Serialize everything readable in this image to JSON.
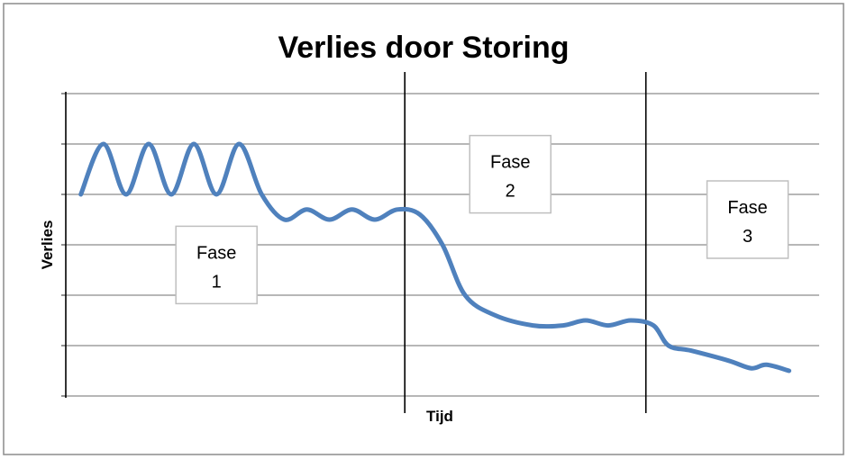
{
  "chart_data": {
    "type": "line",
    "title": "Verlies door Storing",
    "xlabel": "Tijd",
    "ylabel": "Verlies",
    "ylim": [
      0,
      6
    ],
    "xlim": [
      0,
      100
    ],
    "grid": true,
    "series": [
      {
        "color": "#4f81bd",
        "points": [
          [
            2,
            4.0
          ],
          [
            5,
            5.0
          ],
          [
            8,
            4.0
          ],
          [
            11,
            5.0
          ],
          [
            14,
            4.0
          ],
          [
            17,
            5.0
          ],
          [
            20,
            4.0
          ],
          [
            23,
            5.0
          ],
          [
            26,
            4.0
          ],
          [
            29,
            3.5
          ],
          [
            32,
            3.7
          ],
          [
            35,
            3.5
          ],
          [
            38,
            3.7
          ],
          [
            41,
            3.5
          ],
          [
            44,
            3.7
          ],
          [
            47,
            3.6
          ],
          [
            50,
            3.0
          ],
          [
            53,
            2.0
          ],
          [
            57,
            1.6
          ],
          [
            62,
            1.4
          ],
          [
            66,
            1.4
          ],
          [
            69,
            1.5
          ],
          [
            72,
            1.4
          ],
          [
            75,
            1.5
          ],
          [
            78,
            1.4
          ],
          [
            80,
            1.0
          ],
          [
            83,
            0.9
          ],
          [
            88,
            0.7
          ],
          [
            91,
            0.55
          ],
          [
            93,
            0.62
          ],
          [
            96,
            0.5
          ]
        ]
      }
    ],
    "phase_lines_x": [
      45,
      77
    ],
    "phases": [
      {
        "label_line1": "Fase",
        "label_line2": "1",
        "x": 20,
        "y": 2.6
      },
      {
        "label_line1": "Fase",
        "label_line2": "2",
        "x": 59,
        "y": 4.4
      },
      {
        "label_line1": "Fase",
        "label_line2": "3",
        "x": 90.5,
        "y": 3.5
      }
    ]
  }
}
